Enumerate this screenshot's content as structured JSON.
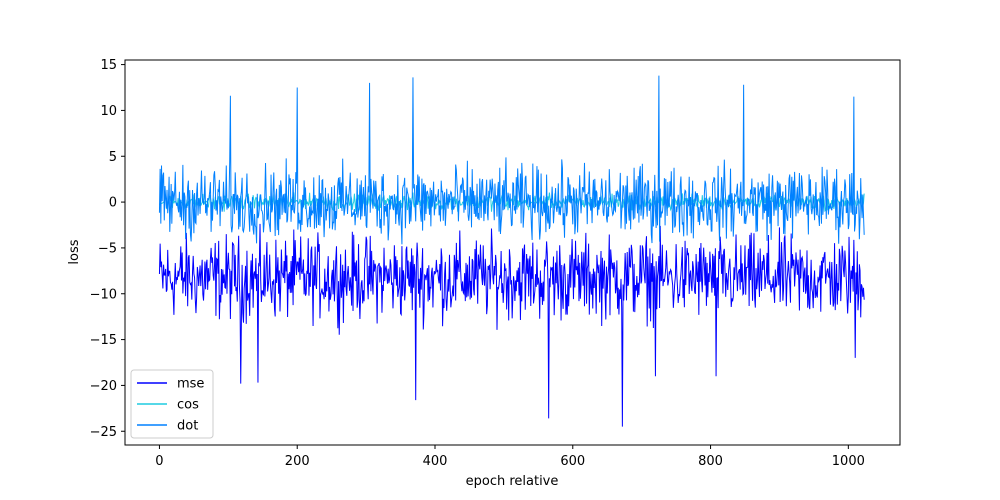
{
  "chart_data": {
    "type": "line",
    "title": "",
    "xlabel": "epoch relative",
    "ylabel": "loss",
    "xlim": [
      -50,
      1075
    ],
    "ylim": [
      -26.5,
      15.5
    ],
    "x_ticks": [
      0,
      200,
      400,
      600,
      800,
      1000
    ],
    "y_ticks": [
      15,
      10,
      5,
      0,
      -5,
      -10,
      -15,
      -20,
      -25
    ],
    "grid": false,
    "legend": {
      "position": "lower-left"
    },
    "n_points": 1024,
    "series": [
      {
        "name": "mse",
        "color": "#0000ff",
        "typical_range": [
          -13.5,
          -3
        ],
        "visible_spikes": [
          {
            "x": 118,
            "y": -19.8
          },
          {
            "x": 143,
            "y": -19.7
          },
          {
            "x": 372,
            "y": -21.6
          },
          {
            "x": 565,
            "y": -23.6
          },
          {
            "x": 672,
            "y": -24.5
          },
          {
            "x": 720,
            "y": -19.0
          },
          {
            "x": 808,
            "y": -19.0
          },
          {
            "x": 1010,
            "y": -17.0
          }
        ]
      },
      {
        "name": "cos",
        "color": "#1ecbe1",
        "typical_range": [
          -1,
          1
        ],
        "visible_spikes": []
      },
      {
        "name": "dot",
        "color": "#0080ff",
        "typical_range": [
          -4.5,
          4.5
        ],
        "visible_spikes": [
          {
            "x": 103,
            "y": 11.6
          },
          {
            "x": 200,
            "y": 12.5
          },
          {
            "x": 305,
            "y": 13.0
          },
          {
            "x": 368,
            "y": 13.6
          },
          {
            "x": 725,
            "y": 13.8
          },
          {
            "x": 848,
            "y": 12.8
          },
          {
            "x": 1008,
            "y": 11.5
          }
        ]
      }
    ]
  }
}
